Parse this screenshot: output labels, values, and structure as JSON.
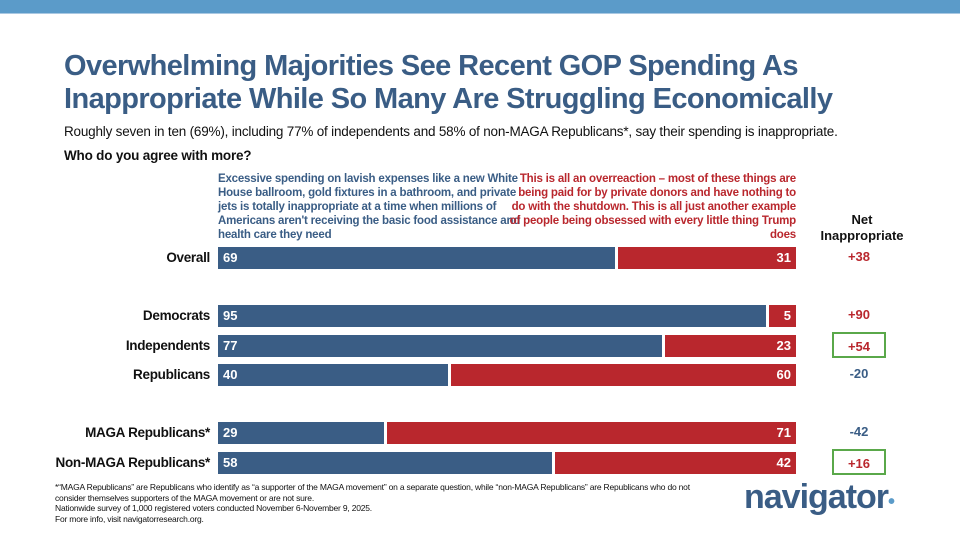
{
  "header": {
    "title": "Overwhelming Majorities See Recent GOP Spending As Inappropriate While So Many Are Struggling Economically",
    "subtitle": "Roughly seven in ten (69%), including 77% of independents and 58% of non-MAGA Republicans*, say their spending is inappropriate.",
    "question": "Who do you agree with more?"
  },
  "chart_data": {
    "type": "bar",
    "orientation": "horizontal-stacked",
    "xlim": [
      0,
      100
    ],
    "series": [
      {
        "name": "Excessive spending on lavish expenses like a new White House ballroom, gold fixtures in a bathroom, and private jets is totally inappropriate at a time when millions of Americans aren't receiving the basic food assistance and health care they need",
        "color": "#3a5d85"
      },
      {
        "name": "This is all an overreaction – most of these things are being paid for by private donors and have nothing to do with the shutdown. This is all just another example of people being obsessed with every little thing Trump does",
        "color": "#b9272d"
      }
    ],
    "net_header": "Net Inappropriate",
    "rows": [
      {
        "label": "Overall",
        "inappropriate": 69,
        "overreaction": 31,
        "net": "+38",
        "highlight": false,
        "group": 0
      },
      {
        "label": "Democrats",
        "inappropriate": 95,
        "overreaction": 5,
        "net": "+90",
        "highlight": false,
        "group": 1
      },
      {
        "label": "Independents",
        "inappropriate": 77,
        "overreaction": 23,
        "net": "+54",
        "highlight": true,
        "group": 1
      },
      {
        "label": "Republicans",
        "inappropriate": 40,
        "overreaction": 60,
        "net": "-20",
        "highlight": false,
        "group": 1
      },
      {
        "label": "MAGA Republicans*",
        "inappropriate": 29,
        "overreaction": 71,
        "net": "-42",
        "highlight": false,
        "group": 2
      },
      {
        "label": "Non-MAGA Republicans*",
        "inappropriate": 58,
        "overreaction": 42,
        "net": "+16",
        "highlight": true,
        "group": 2
      }
    ],
    "colors": {
      "positive_net": "#b9272d",
      "negative_net": "#3a5d85",
      "highlight_box": "#5aa84a"
    }
  },
  "footer": {
    "lines": [
      "*“MAGA Republicans” are Republicans who identify as “a supporter of the MAGA movement” on a separate question, while “non-MAGA Republicans” are Republicans who do not consider themselves supporters of the MAGA movement or are not sure.",
      "Nationwide survey of 1,000 registered voters conducted November 6-November 9, 2025.",
      "For more info, visit navigatorresearch.org."
    ],
    "logo": "navigator"
  }
}
